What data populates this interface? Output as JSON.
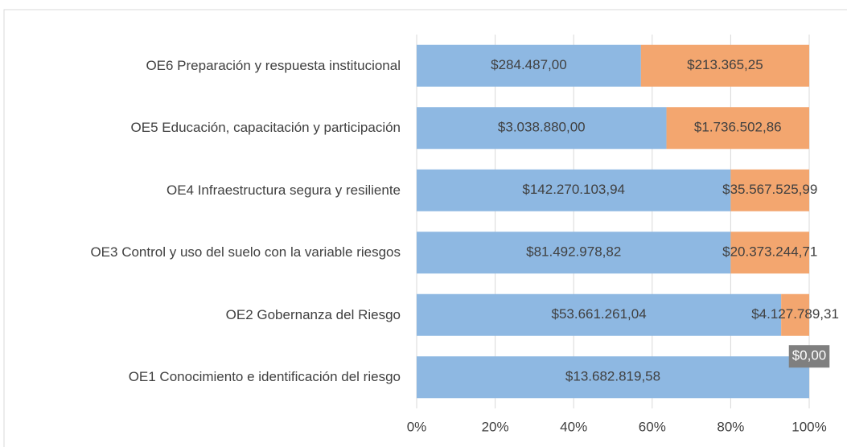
{
  "chart_data": {
    "type": "bar",
    "orientation": "horizontal",
    "stacking": "percent",
    "categories": [
      "OE6 Preparación y respuesta institucional",
      "OE5 Educación, capacitación y participación",
      "OE4 Infraestructura segura y resiliente",
      "OE3 Control y uso del suelo con la variable riesgos",
      "OE2 Gobernanza del Riesgo",
      "OE1 Conocimiento e identificación del riesgo"
    ],
    "series": [
      {
        "color": "#8eb8e2",
        "values": [
          284487.0,
          3038880.0,
          142270103.94,
          81492978.82,
          53661261.04,
          13682819.58
        ],
        "value_labels": [
          "$284.487,00",
          "$3.038.880,00",
          "$142.270.103,94",
          "$81.492.978,82",
          "$53.661.261,04",
          "$13.682.819,58"
        ]
      },
      {
        "color": "#f3a66f",
        "values": [
          213365.25,
          1736502.86,
          35567525.99,
          20373244.71,
          4127789.31,
          0
        ],
        "value_labels": [
          "$213.365,25",
          "$1.736.502,86",
          "$35.567.525,99",
          "$20.373.244,71",
          "$4.127.789,31",
          "$0,00"
        ]
      }
    ],
    "xlim": [
      0,
      100
    ],
    "xticks": [
      {
        "value": 0,
        "label": "0%"
      },
      {
        "value": 20,
        "label": "20%"
      },
      {
        "value": 40,
        "label": "40%"
      },
      {
        "value": 60,
        "label": "60%"
      },
      {
        "value": 80,
        "label": "80%"
      },
      {
        "value": 100,
        "label": "100%"
      }
    ],
    "grid": true
  }
}
